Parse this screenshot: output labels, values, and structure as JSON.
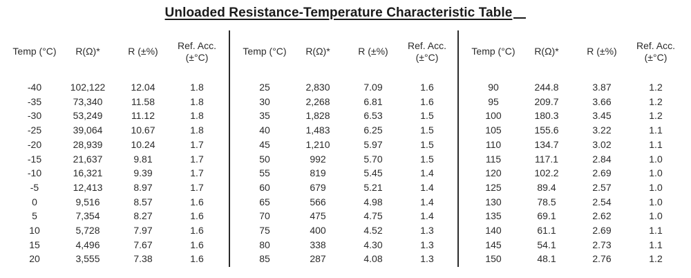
{
  "title": "Unloaded Resistance-Temperature Characteristic Table",
  "headers": {
    "temp": "Temp (°C)",
    "r": "R(Ω)*",
    "rpct": "R (±%)",
    "refacc_line1": "Ref. Acc.",
    "refacc_line2": "(±°C)"
  },
  "blocks": [
    {
      "rows": [
        {
          "temp": "-40",
          "r": "102,122",
          "rpct": "12.04",
          "acc": "1.8"
        },
        {
          "temp": "-35",
          "r": "73,340",
          "rpct": "11.58",
          "acc": "1.8"
        },
        {
          "temp": "-30",
          "r": "53,249",
          "rpct": "11.12",
          "acc": "1.8"
        },
        {
          "temp": "-25",
          "r": "39,064",
          "rpct": "10.67",
          "acc": "1.8"
        },
        {
          "temp": "-20",
          "r": "28,939",
          "rpct": "10.24",
          "acc": "1.7"
        },
        {
          "temp": "-15",
          "r": "21,637",
          "rpct": "9.81",
          "acc": "1.7"
        },
        {
          "temp": "-10",
          "r": "16,321",
          "rpct": "9.39",
          "acc": "1.7"
        },
        {
          "temp": "-5",
          "r": "12,413",
          "rpct": "8.97",
          "acc": "1.7"
        },
        {
          "temp": "0",
          "r": "9,516",
          "rpct": "8.57",
          "acc": "1.6"
        },
        {
          "temp": "5",
          "r": "7,354",
          "rpct": "8.27",
          "acc": "1.6"
        },
        {
          "temp": "10",
          "r": "5,728",
          "rpct": "7.97",
          "acc": "1.6"
        },
        {
          "temp": "15",
          "r": "4,496",
          "rpct": "7.67",
          "acc": "1.6"
        },
        {
          "temp": "20",
          "r": "3,555",
          "rpct": "7.38",
          "acc": "1.6"
        }
      ]
    },
    {
      "rows": [
        {
          "temp": "25",
          "r": "2,830",
          "rpct": "7.09",
          "acc": "1.6"
        },
        {
          "temp": "30",
          "r": "2,268",
          "rpct": "6.81",
          "acc": "1.6"
        },
        {
          "temp": "35",
          "r": "1,828",
          "rpct": "6.53",
          "acc": "1.5"
        },
        {
          "temp": "40",
          "r": "1,483",
          "rpct": "6.25",
          "acc": "1.5"
        },
        {
          "temp": "45",
          "r": "1,210",
          "rpct": "5.97",
          "acc": "1.5"
        },
        {
          "temp": "50",
          "r": "992",
          "rpct": "5.70",
          "acc": "1.5"
        },
        {
          "temp": "55",
          "r": "819",
          "rpct": "5.45",
          "acc": "1.4"
        },
        {
          "temp": "60",
          "r": "679",
          "rpct": "5.21",
          "acc": "1.4"
        },
        {
          "temp": "65",
          "r": "566",
          "rpct": "4.98",
          "acc": "1.4"
        },
        {
          "temp": "70",
          "r": "475",
          "rpct": "4.75",
          "acc": "1.4"
        },
        {
          "temp": "75",
          "r": "400",
          "rpct": "4.52",
          "acc": "1.3"
        },
        {
          "temp": "80",
          "r": "338",
          "rpct": "4.30",
          "acc": "1.3"
        },
        {
          "temp": "85",
          "r": "287",
          "rpct": "4.08",
          "acc": "1.3"
        }
      ]
    },
    {
      "rows": [
        {
          "temp": "90",
          "r": "244.8",
          "rpct": "3.87",
          "acc": "1.2"
        },
        {
          "temp": "95",
          "r": "209.7",
          "rpct": "3.66",
          "acc": "1.2"
        },
        {
          "temp": "100",
          "r": "180.3",
          "rpct": "3.45",
          "acc": "1.2"
        },
        {
          "temp": "105",
          "r": "155.6",
          "rpct": "3.22",
          "acc": "1.1"
        },
        {
          "temp": "110",
          "r": "134.7",
          "rpct": "3.02",
          "acc": "1.1"
        },
        {
          "temp": "115",
          "r": "117.1",
          "rpct": "2.84",
          "acc": "1.0"
        },
        {
          "temp": "120",
          "r": "102.2",
          "rpct": "2.69",
          "acc": "1.0"
        },
        {
          "temp": "125",
          "r": "89.4",
          "rpct": "2.57",
          "acc": "1.0"
        },
        {
          "temp": "130",
          "r": "78.5",
          "rpct": "2.54",
          "acc": "1.0"
        },
        {
          "temp": "135",
          "r": "69.1",
          "rpct": "2.62",
          "acc": "1.0"
        },
        {
          "temp": "140",
          "r": "61.1",
          "rpct": "2.69",
          "acc": "1.1"
        },
        {
          "temp": "145",
          "r": "54.1",
          "rpct": "2.73",
          "acc": "1.1"
        },
        {
          "temp": "150",
          "r": "48.1",
          "rpct": "2.76",
          "acc": "1.2"
        }
      ]
    }
  ]
}
